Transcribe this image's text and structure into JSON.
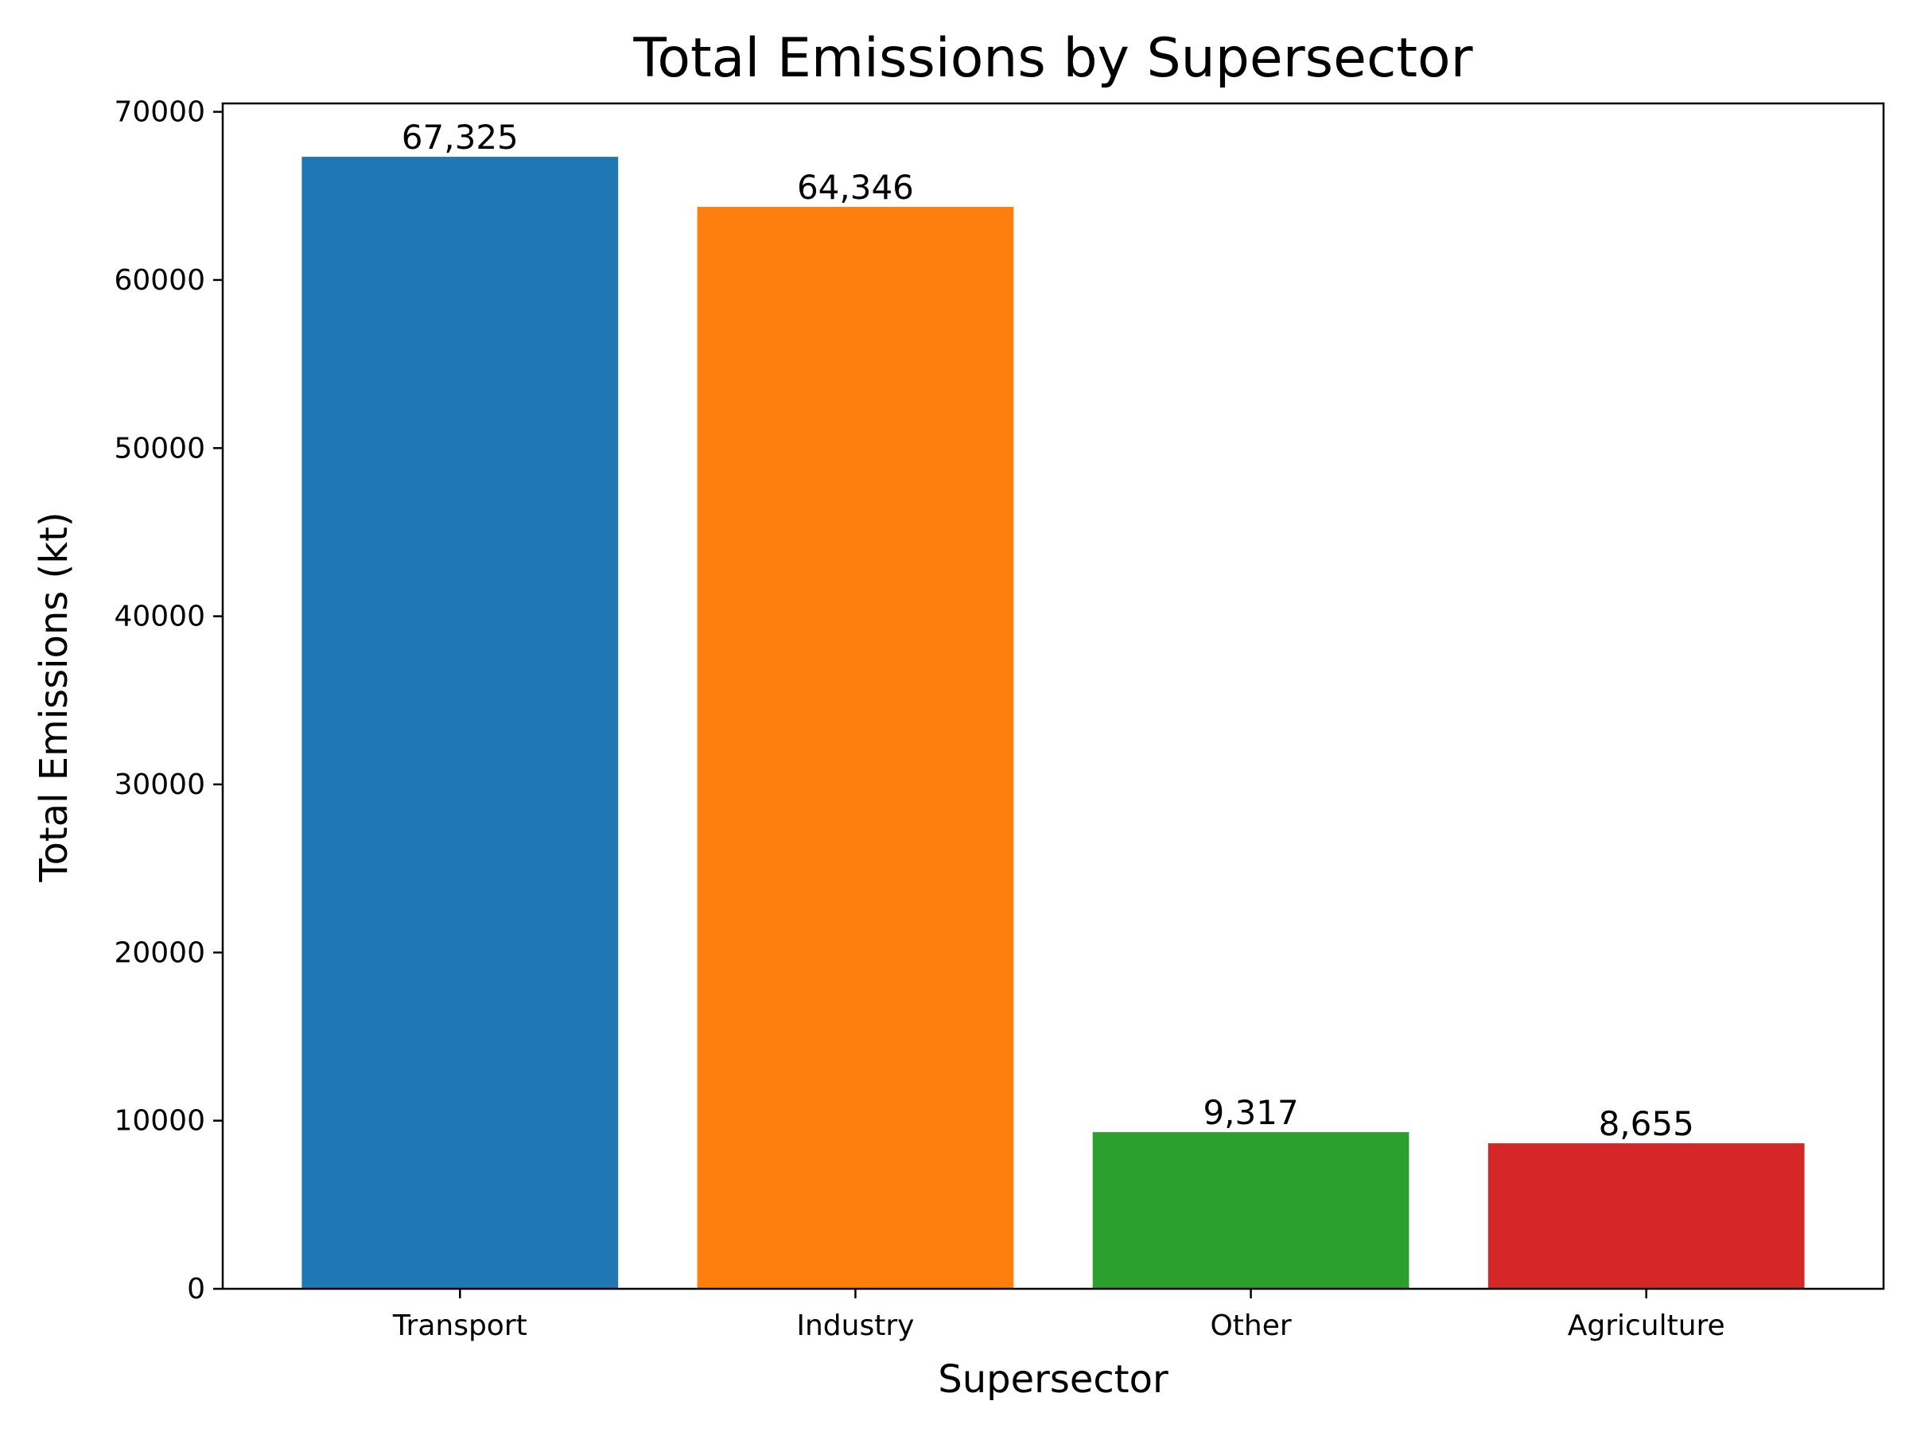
{
  "chart_data": {
    "type": "bar",
    "title": "Total Emissions by Supersector",
    "xlabel": "Supersector",
    "ylabel": "Total Emissions (kt)",
    "categories": [
      "Transport",
      "Industry",
      "Other",
      "Agriculture"
    ],
    "values": [
      67325,
      64346,
      9317,
      8655
    ],
    "data_labels": [
      "67,325",
      "64,346",
      "9,317",
      "8,655"
    ],
    "colors": [
      "#1f77b4",
      "#ff7f0e",
      "#2ca02c",
      "#d62728"
    ],
    "ylim": [
      0,
      70500
    ],
    "yticks": [
      0,
      10000,
      20000,
      30000,
      40000,
      50000,
      60000,
      70000
    ],
    "ytick_labels": [
      "0",
      "10000",
      "20000",
      "30000",
      "40000",
      "50000",
      "60000",
      "70000"
    ],
    "grid": false,
    "legend": "none"
  }
}
